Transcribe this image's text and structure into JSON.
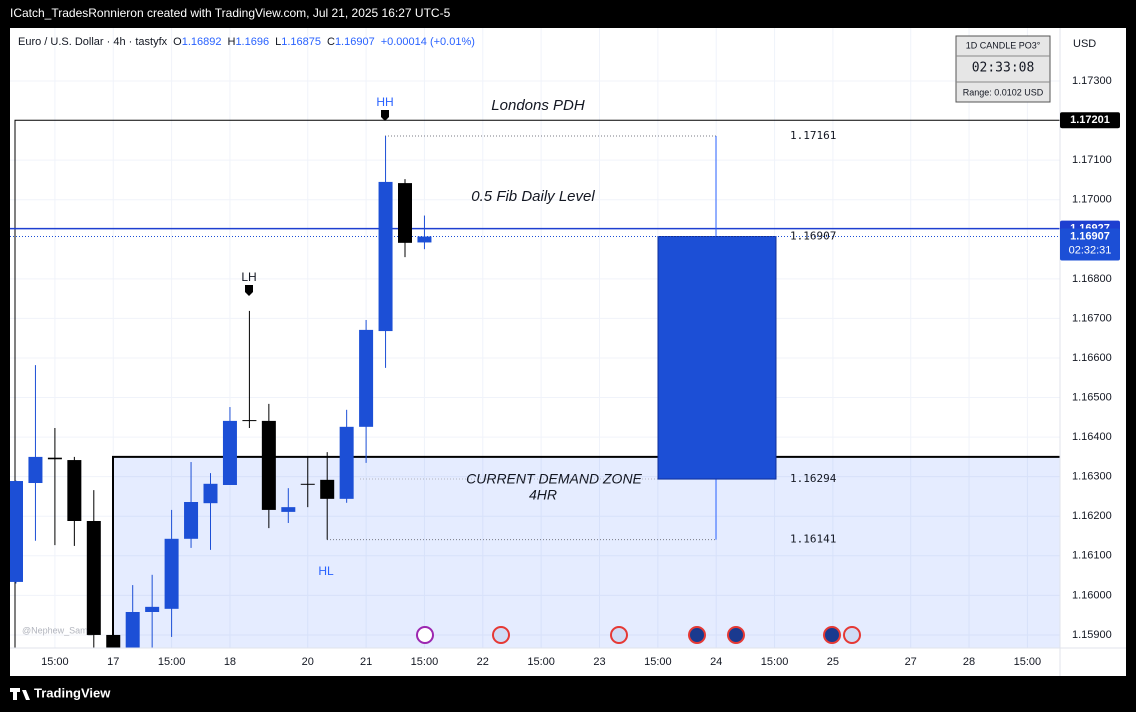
{
  "header": {
    "title": "ICatch_TradesRonnieron created with TradingView.com, Jul 21, 2025 16:27 UTC-5"
  },
  "footer": {
    "brand": "TradingView",
    "watermark": "@Nephew_Sam_"
  },
  "widget": {
    "title": "1D CANDLE PO3°",
    "timer": "02:33:08",
    "range": "Range: 0.0102 USD"
  },
  "chart_data": {
    "type": "candlestick",
    "symbol": "Euro / U.S. Dollar · 4h · tastyfx",
    "ohlc_labels": [
      "O",
      "H",
      "L",
      "C"
    ],
    "change": "+0.00014 (+0.01%)",
    "currency": "USD",
    "up_color": "#1c4fd6",
    "down_color": "#000000",
    "grid": true,
    "categories": [
      null,
      null,
      "15:00",
      null,
      null,
      "17",
      null,
      null,
      "15:00",
      null,
      null,
      "18",
      null,
      null,
      null,
      "20",
      null,
      null,
      "21",
      null,
      null,
      "15:00",
      null,
      null,
      "22",
      null,
      null,
      "15:00",
      null,
      null,
      "23",
      null,
      null,
      "15:00",
      null,
      null,
      "24",
      null,
      null,
      "15:00",
      null,
      null,
      "25",
      null,
      null,
      null,
      "27",
      null,
      null,
      "28",
      null,
      null,
      "15:00",
      null
    ],
    "open": [
      1.16034,
      1.16284,
      1.16348,
      1.16342,
      1.16188,
      1.159,
      1.1586,
      1.15958,
      1.15966,
      1.16143,
      1.16233,
      1.16279,
      1.16443,
      1.16441,
      1.16211,
      1.16282,
      1.16292,
      1.16244,
      1.16426,
      1.16668,
      1.17042,
      1.16892,
      null,
      null,
      null,
      null,
      null,
      null,
      null,
      null,
      null,
      null,
      null,
      null,
      null,
      null,
      null,
      null,
      null,
      null,
      null,
      null,
      null,
      null,
      null,
      null,
      null,
      null,
      null,
      null,
      null,
      null,
      null,
      null
    ],
    "high": [
      1.1629,
      1.16582,
      1.16423,
      1.1635,
      1.16266,
      1.15905,
      1.16026,
      1.16052,
      1.16216,
      1.16337,
      1.16309,
      1.16476,
      1.16719,
      1.16484,
      1.16271,
      1.1635,
      1.16362,
      1.16469,
      1.16696,
      1.17161,
      1.17052,
      1.1696,
      null,
      null,
      null,
      null,
      null,
      null,
      null,
      null,
      null,
      null,
      null,
      null,
      null,
      null,
      null,
      null,
      null,
      null,
      null,
      null,
      null,
      null,
      null,
      null,
      null,
      null,
      null,
      null,
      null,
      null,
      null,
      null
    ],
    "low": [
      1.1603,
      1.16138,
      1.16127,
      1.16125,
      1.15867,
      1.1586,
      1.1586,
      1.15867,
      1.15895,
      1.1612,
      1.16115,
      1.16279,
      1.16423,
      1.1617,
      1.16183,
      1.16223,
      1.16141,
      1.16234,
      1.16335,
      1.16575,
      1.16855,
      1.16875,
      null,
      null,
      null,
      null,
      null,
      null,
      null,
      null,
      null,
      null,
      null,
      null,
      null,
      null,
      null,
      null,
      null,
      null,
      null,
      null,
      null,
      null,
      null,
      null,
      null,
      null,
      null,
      null,
      null,
      null,
      null,
      null
    ],
    "close": [
      1.16289,
      1.1635,
      1.16344,
      1.16188,
      1.159,
      1.15865,
      1.15958,
      1.15971,
      1.16143,
      1.16236,
      1.16282,
      1.16441,
      1.16441,
      1.16216,
      1.16223,
      1.1628,
      1.16244,
      1.16426,
      1.16671,
      1.17045,
      1.16891,
      1.16907,
      null,
      null,
      null,
      null,
      null,
      null,
      null,
      null,
      null,
      null,
      null,
      null,
      null,
      null,
      null,
      null,
      null,
      null,
      null,
      null,
      null,
      null,
      null,
      null,
      null,
      null,
      null,
      null,
      null,
      null,
      null,
      null
    ],
    "ylim": [
      1.15867,
      1.17434
    ],
    "yticks": [
      {
        "value": 1.159,
        "label": "1.15900"
      },
      {
        "value": 1.16,
        "label": "1.16000"
      },
      {
        "value": 1.161,
        "label": "1.16100"
      },
      {
        "value": 1.162,
        "label": "1.16200"
      },
      {
        "value": 1.163,
        "label": "1.16300"
      },
      {
        "value": 1.164,
        "label": "1.16400"
      },
      {
        "value": 1.165,
        "label": "1.16500"
      },
      {
        "value": 1.166,
        "label": "1.16600"
      },
      {
        "value": 1.167,
        "label": "1.16700"
      },
      {
        "value": 1.168,
        "label": "1.16800"
      },
      {
        "value": 1.17,
        "label": "1.17000"
      },
      {
        "value": 1.171,
        "label": "1.17100"
      },
      {
        "value": 1.173,
        "label": "1.17300"
      }
    ],
    "pdh_line": {
      "value": 1.17201,
      "label": "Londons PDH"
    },
    "fib_line": {
      "value": 1.16927,
      "label": "0.5 Fib Daily Level"
    },
    "countdown": "02:32:31",
    "demand_zone": {
      "top": 1.1635,
      "label": "CURRENT DEMAND ZONE",
      "sublabel": "4HR"
    },
    "measure": {
      "high": 1.17161,
      "top": 1.16907,
      "bottom": 1.16294,
      "low": 1.16141
    },
    "swing_labels": {
      "hh": "HH",
      "lh": "LH",
      "hl": "HL"
    }
  }
}
